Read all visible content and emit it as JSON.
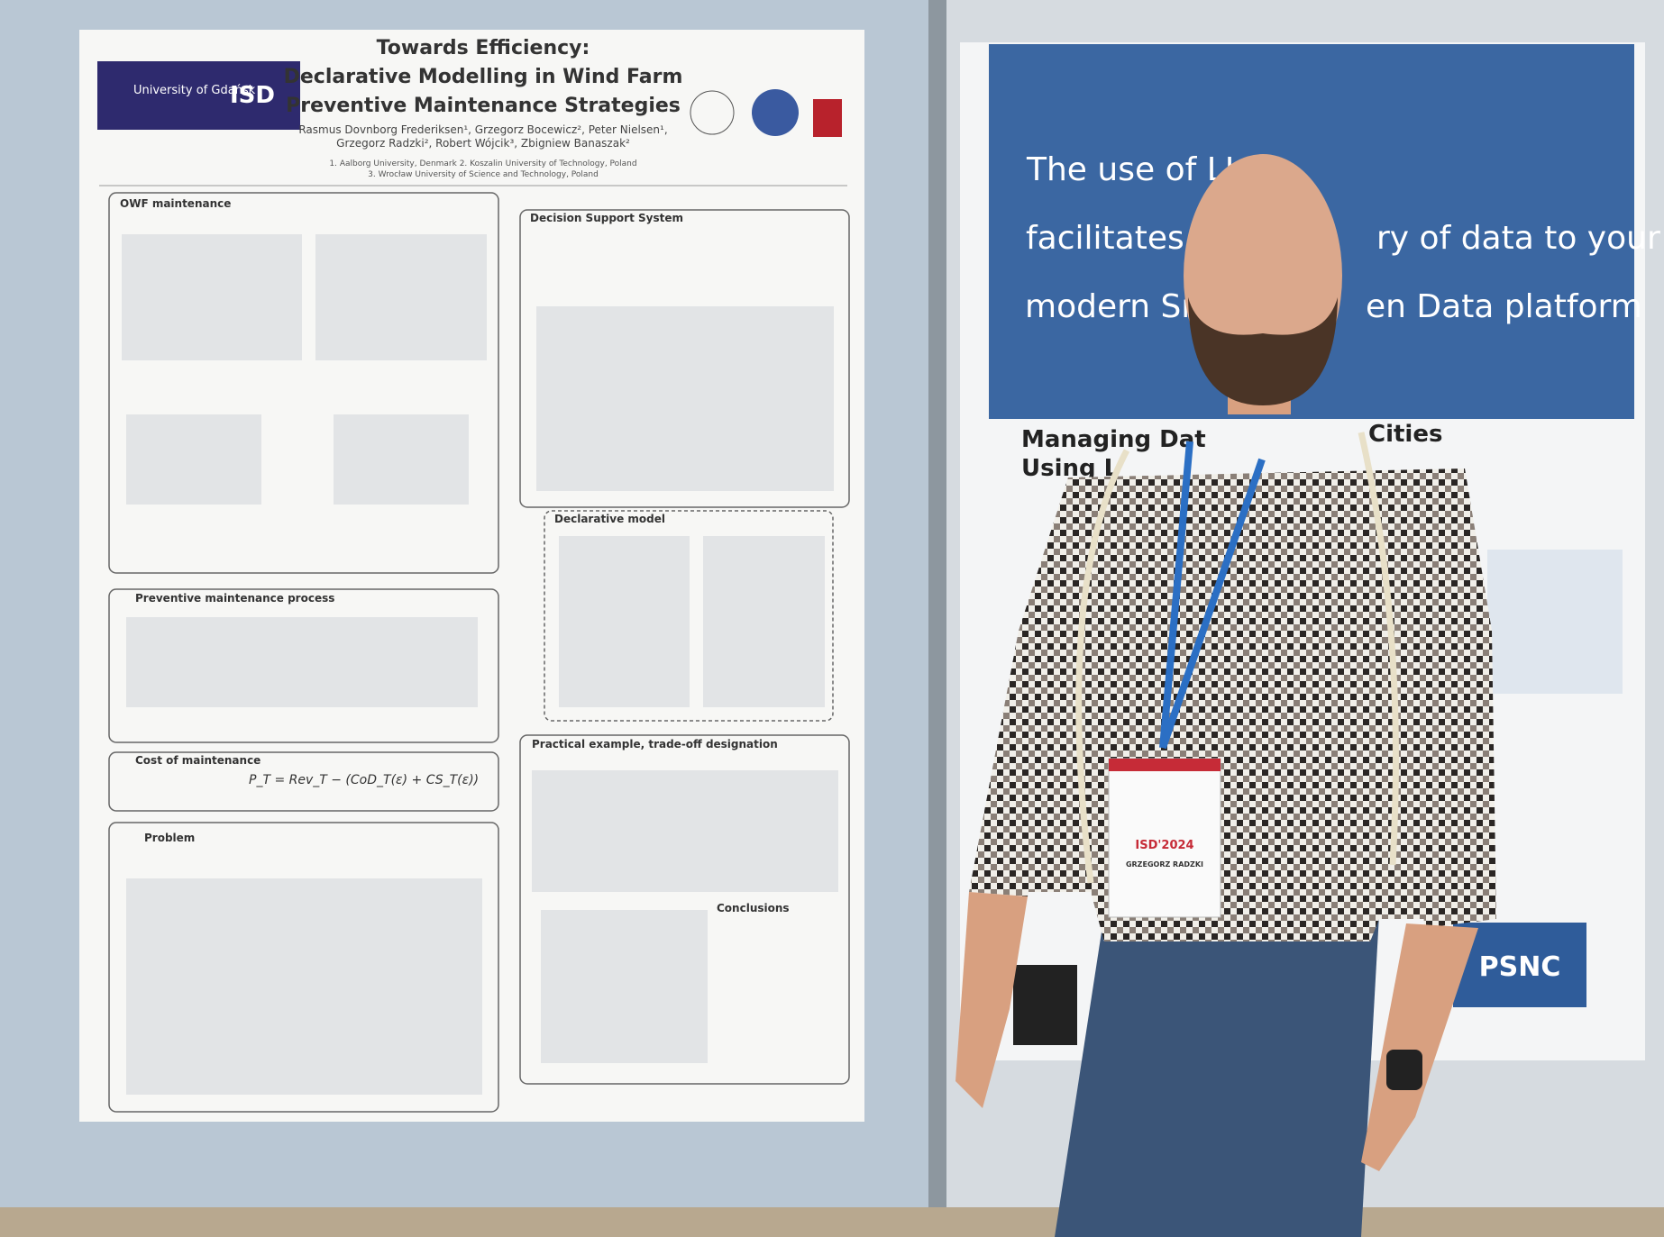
{
  "left_poster": {
    "logos": [
      "University of Gdańsk",
      "ISD"
    ],
    "title": [
      "Towards Efficiency:",
      "Declarative Modelling in Wind Farm",
      "Preventive Maintenance Strategies"
    ],
    "authors": [
      "Rasmus Dovnborg Frederiksen¹, Grzegorz Bocewicz², Peter Nielsen¹,",
      "Grzegorz Radzki², Robert Wójcik³, Zbigniew Banaszak²"
    ],
    "affiliations": [
      "1. Aalborg University, Denmark 2. Koszalin University of Technology, Poland",
      "3. Wrocław University of Science and Technology, Poland"
    ],
    "sections": [
      "OWF maintenance",
      "Preventive maintenance process",
      "Cost of maintenance",
      "Problem",
      "Decision Support System",
      "Declarative model",
      "Practical example, trade-off designation",
      "Conclusions"
    ],
    "formula": "P_T = Rev_T − (CoD_T(ε) + CS_T(ε))"
  },
  "right_poster": {
    "header": [
      "The use of LL",
      "facilitates e",
      "ry of data to your",
      "modern Sm",
      "en Data platform"
    ],
    "subtitle": [
      "Managing Dat",
      "Cities",
      "Using L"
    ],
    "logo": "PSNC"
  },
  "badge": {
    "event": "ISD'2024",
    "name": "GRZEGORZ RADZKI"
  }
}
